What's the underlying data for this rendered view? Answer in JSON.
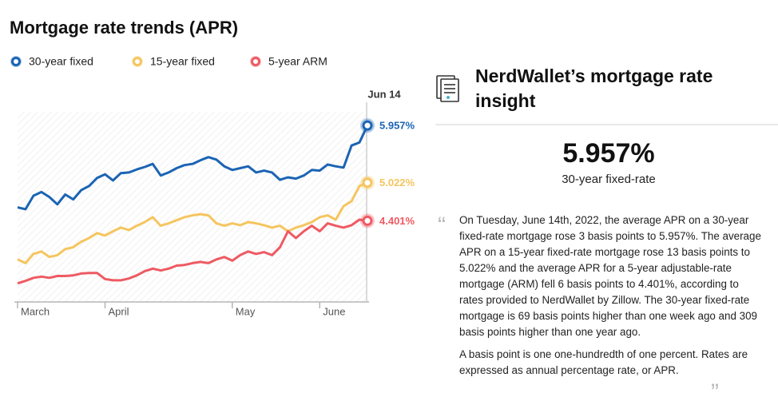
{
  "chart_data": {
    "type": "line",
    "title": "Mortgage rate trends (APR)",
    "end_date": "Jun 14",
    "categories": [
      "March",
      null,
      null,
      null,
      null,
      null,
      null,
      null,
      null,
      null,
      null,
      "April",
      null,
      null,
      null,
      null,
      null,
      null,
      null,
      null,
      null,
      null,
      null,
      null,
      null,
      null,
      null,
      "May",
      null,
      null,
      null,
      null,
      null,
      null,
      null,
      null,
      null,
      null,
      "June",
      null,
      null,
      null,
      null,
      null,
      null
    ],
    "ylim": [
      3.05,
      6.18
    ],
    "series": [
      {
        "name": "30-year fixed",
        "color": "#1b64b4",
        "last_label": "5.957%",
        "values": [
          4.62,
          4.59,
          4.81,
          4.87,
          4.79,
          4.67,
          4.83,
          4.75,
          4.9,
          4.97,
          5.1,
          5.16,
          5.06,
          5.18,
          5.19,
          5.24,
          5.28,
          5.33,
          5.14,
          5.19,
          5.26,
          5.31,
          5.33,
          5.39,
          5.44,
          5.4,
          5.29,
          5.23,
          5.26,
          5.29,
          5.19,
          5.22,
          5.19,
          5.07,
          5.11,
          5.09,
          5.14,
          5.23,
          5.22,
          5.32,
          5.29,
          5.27,
          5.63,
          5.68,
          5.957
        ]
      },
      {
        "name": "15-year fixed",
        "color": "#f5c55f",
        "last_label": "5.022%",
        "values": [
          3.77,
          3.71,
          3.86,
          3.9,
          3.81,
          3.84,
          3.94,
          3.97,
          4.06,
          4.12,
          4.2,
          4.16,
          4.23,
          4.29,
          4.25,
          4.32,
          4.38,
          4.46,
          4.32,
          4.36,
          4.41,
          4.46,
          4.49,
          4.51,
          4.49,
          4.36,
          4.32,
          4.36,
          4.33,
          4.38,
          4.36,
          4.33,
          4.29,
          4.32,
          4.23,
          4.29,
          4.33,
          4.38,
          4.46,
          4.49,
          4.42,
          4.64,
          4.72,
          4.97,
          5.022
        ]
      },
      {
        "name": "5-year ARM",
        "color": "#ee5a62",
        "last_label": "4.401%",
        "values": [
          3.38,
          3.42,
          3.47,
          3.49,
          3.47,
          3.5,
          3.5,
          3.51,
          3.54,
          3.55,
          3.55,
          3.45,
          3.43,
          3.43,
          3.46,
          3.51,
          3.58,
          3.62,
          3.59,
          3.62,
          3.67,
          3.68,
          3.71,
          3.73,
          3.71,
          3.77,
          3.81,
          3.75,
          3.84,
          3.9,
          3.86,
          3.89,
          3.84,
          3.97,
          4.23,
          4.12,
          4.23,
          4.32,
          4.23,
          4.36,
          4.32,
          4.29,
          4.33,
          4.42,
          4.401
        ]
      }
    ]
  },
  "insight": {
    "title": "NerdWallet’s mortgage rate insight",
    "value": "5.957%",
    "label": "30-year fixed-rate",
    "paragraphs": [
      "On Tuesday, June 14th, 2022, the average APR on a 30-year fixed-rate mortgage rose 3 basis points to 5.957%. The average APR on a 15-year fixed-rate mortgage rose 13 basis points to 5.022% and the average APR for a 5-year adjustable-rate mortgage (ARM) fell 6 basis points to 4.401%, according to rates provided to NerdWallet by Zillow. The 30-year fixed-rate mortgage is 69 basis points higher than one week ago and 309 basis points higher than one year ago.",
      "A basis point is one one-hundredth of one percent. Rates are expressed as annual percentage rate, or APR."
    ]
  }
}
